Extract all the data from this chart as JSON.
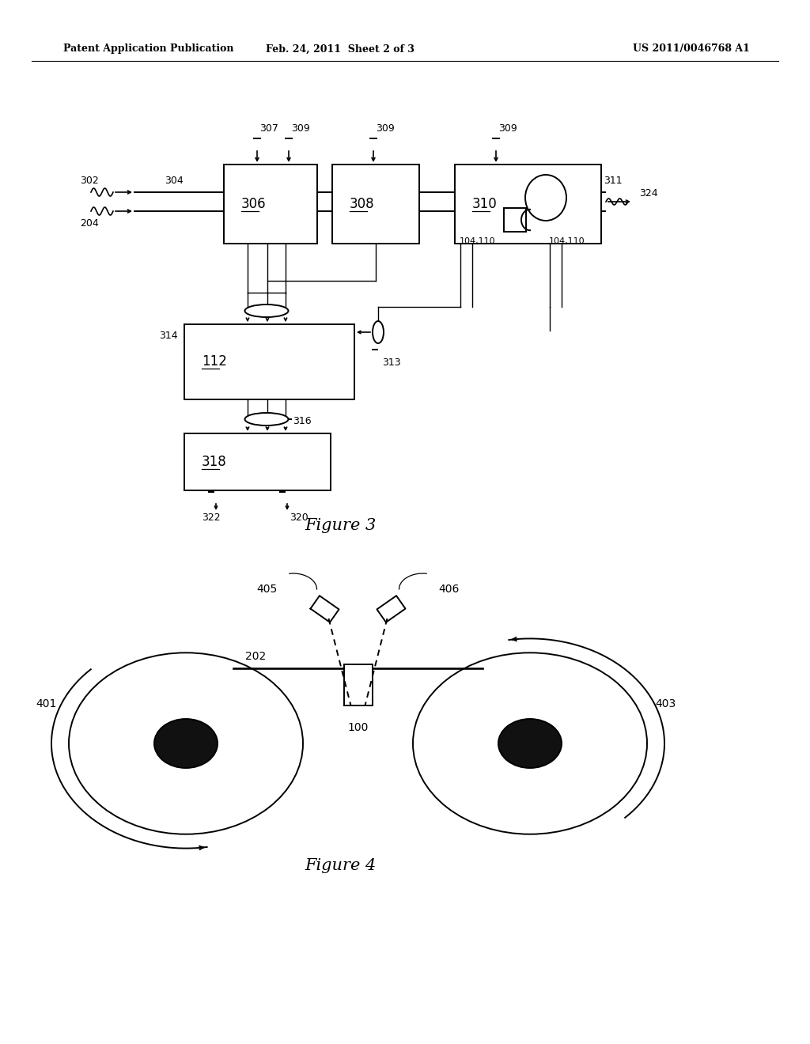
{
  "background_color": "#ffffff",
  "header_left": "Patent Application Publication",
  "header_center": "Feb. 24, 2011  Sheet 2 of 3",
  "header_right": "US 2011/0046768 A1",
  "fig3_title": "Figure 3",
  "fig4_title": "Figure 4",
  "black": "#000000"
}
